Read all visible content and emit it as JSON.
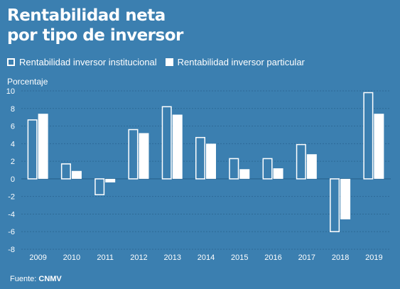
{
  "header": {
    "title_line1": "Rentabilidad neta",
    "title_line2": "por tipo de inversor"
  },
  "legend": {
    "institutional": "Rentabilidad inversor institucional",
    "particular": "Rentabilidad inversor particular"
  },
  "footer": {
    "source_label": "Fuente:",
    "source_name": "CNMV"
  },
  "colors": {
    "background": "#3b7fb0",
    "institutional_fill": "#3b7fb0",
    "institutional_stroke": "#ffffff",
    "particular_fill": "#ffffff",
    "grid": "#2d6a96"
  },
  "chart_data": {
    "type": "bar",
    "ylabel": "Porcentaje",
    "ylim": [
      -8,
      10
    ],
    "yticks": [
      10,
      8,
      6,
      4,
      2,
      0,
      -2,
      -4,
      -6,
      -8
    ],
    "grid": true,
    "legend_position": "top-left",
    "categories": [
      "2009",
      "2010",
      "2011",
      "2012",
      "2013",
      "2014",
      "2015",
      "2016",
      "2017",
      "2018",
      "2019"
    ],
    "series": [
      {
        "name": "Rentabilidad inversor institucional",
        "values": [
          6.7,
          1.7,
          -1.8,
          5.6,
          8.2,
          4.7,
          2.3,
          2.3,
          3.9,
          -6.0,
          9.8
        ]
      },
      {
        "name": "Rentabilidad inversor particular",
        "values": [
          7.4,
          0.9,
          -0.4,
          5.2,
          7.3,
          4.0,
          1.1,
          1.2,
          2.8,
          -4.6,
          7.4
        ]
      }
    ]
  }
}
